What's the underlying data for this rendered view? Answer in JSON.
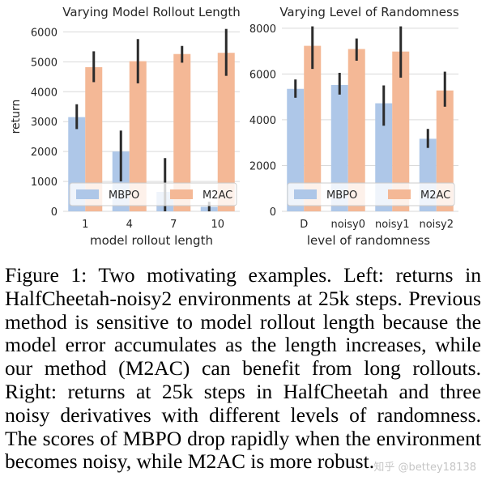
{
  "chart_data": [
    {
      "type": "bar",
      "title": "Varying Model Rollout Length",
      "xlabel": "model rollout length",
      "ylabel": "return",
      "categories": [
        "1",
        "4",
        "7",
        "10"
      ],
      "ylim": [
        0,
        6200
      ],
      "yticks": [
        0,
        1000,
        2000,
        3000,
        4000,
        5000,
        6000
      ],
      "grid": true,
      "legend_position": "lower-center",
      "series": [
        {
          "name": "MBPO",
          "color": "#aec7e8",
          "values": [
            3150,
            2000,
            650,
            150
          ],
          "err_low": [
            2750,
            1000,
            0,
            0
          ],
          "err_high": [
            3580,
            2700,
            1780,
            320
          ]
        },
        {
          "name": "M2AC",
          "color": "#f4b896",
          "values": [
            4820,
            5020,
            5260,
            5300
          ],
          "err_low": [
            4320,
            4280,
            4970,
            4530
          ],
          "err_high": [
            5350,
            5760,
            5530,
            6100
          ]
        }
      ]
    },
    {
      "type": "bar",
      "title": "Varying Level of Randomness",
      "xlabel": "level of randomness",
      "ylabel": "",
      "categories": [
        "D",
        "noisy0",
        "noisy1",
        "noisy2"
      ],
      "ylim": [
        0,
        8100
      ],
      "yticks": [
        0,
        2000,
        4000,
        6000,
        8000
      ],
      "grid": true,
      "legend_position": "lower-center",
      "series": [
        {
          "name": "MBPO",
          "color": "#aec7e8",
          "values": [
            5350,
            5520,
            4720,
            3170
          ],
          "err_low": [
            4960,
            5100,
            3740,
            2770
          ],
          "err_high": [
            5760,
            6050,
            5500,
            3600
          ]
        },
        {
          "name": "M2AC",
          "color": "#f4b896",
          "values": [
            7230,
            7090,
            6980,
            5280
          ],
          "err_low": [
            6220,
            6580,
            5840,
            4570
          ],
          "err_high": [
            8080,
            7550,
            8080,
            6100
          ]
        }
      ]
    }
  ],
  "caption": "Figure 1: Two motivating examples. Left: returns in HalfCheetah-noisy2 environments at 25k steps. Previous method is sensitive to model rollout length because the model error accumulates as the length increases, while our method (M2AC) can benefit from long rollouts. Right: returns at 25k steps in HalfCheetah and three noisy derivatives with different levels of randomness. The scores of MBPO drop rapidly when the environment becomes noisy, while M2AC is more robust.",
  "watermark": "知乎 @bettey18138"
}
